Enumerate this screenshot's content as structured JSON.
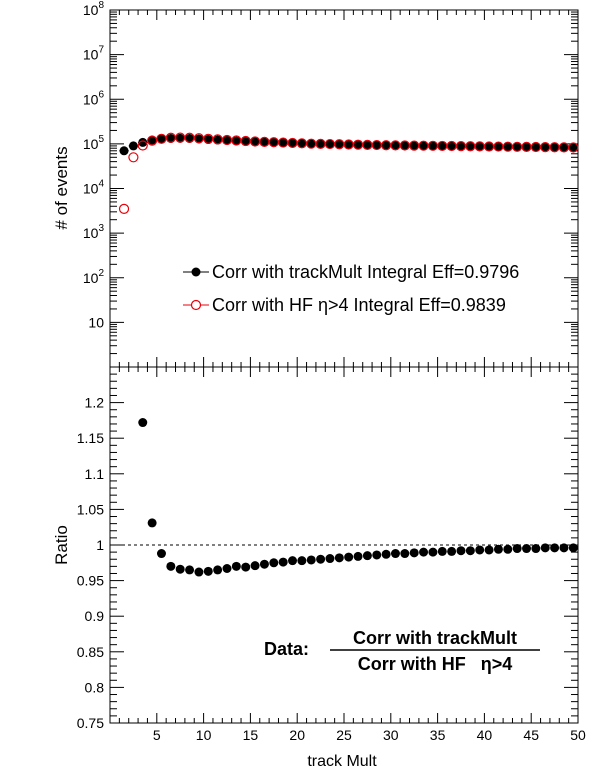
{
  "chart_data": [
    {
      "type": "scatter",
      "title": "",
      "xlabel": "",
      "ylabel": "# of events",
      "yscale": "log",
      "xlim": [
        0,
        50
      ],
      "ylim": [
        1,
        100000000
      ],
      "ytick_values": [
        10,
        100,
        1000,
        10000,
        100000,
        1000000,
        10000000,
        100000000
      ],
      "ytick_exponents": [
        "",
        "2",
        "3",
        "4",
        "5",
        "6",
        "7",
        "8"
      ],
      "ytick_base": "10",
      "grid": false,
      "legend_position": "center-right",
      "x": [
        1.5,
        2.5,
        3.5,
        4.5,
        5.5,
        6.5,
        7.5,
        8.5,
        9.5,
        10.5,
        11.5,
        12.5,
        13.5,
        14.5,
        15.5,
        16.5,
        17.5,
        18.5,
        19.5,
        20.5,
        21.5,
        22.5,
        23.5,
        24.5,
        25.5,
        26.5,
        27.5,
        28.5,
        29.5,
        30.5,
        31.5,
        32.5,
        33.5,
        34.5,
        35.5,
        36.5,
        37.5,
        38.5,
        39.5,
        40.5,
        41.5,
        42.5,
        43.5,
        44.5,
        45.5,
        46.5,
        47.5,
        48.5,
        49.5
      ],
      "series": [
        {
          "name": "Corr with trackMult Integral Eff=0.9796",
          "marker": "filled-circle",
          "color": "#000000",
          "values": [
            70000,
            90000,
            108000,
            122000,
            128000,
            132000,
            133000,
            132000,
            129000,
            125000,
            122000,
            119000,
            116000,
            113000,
            111000,
            109000,
            107000,
            105000,
            103000,
            101000,
            100000,
            99000,
            98000,
            97000,
            96000,
            95000,
            94000,
            93000,
            92000,
            91500,
            91000,
            90500,
            90000,
            89500,
            89000,
            88500,
            88000,
            87500,
            87000,
            86500,
            86000,
            85500,
            85000,
            84500,
            84000,
            83500,
            83000,
            82500,
            82000
          ]
        },
        {
          "name": "Corr with HF η>4 Integral Eff=0.9839",
          "marker": "open-circle",
          "color": "#e8000b",
          "values": [
            3500,
            50000,
            92000,
            118000,
            130000,
            137000,
            138000,
            137000,
            134000,
            130000,
            126000,
            122000,
            119000,
            116000,
            113000,
            111000,
            109000,
            107000,
            105000,
            103000,
            101000,
            100000,
            99000,
            98000,
            97000,
            96000,
            95000,
            94000,
            93000,
            92500,
            92000,
            91500,
            91000,
            90500,
            90000,
            89500,
            89000,
            88500,
            88000,
            87500,
            87000,
            86500,
            86000,
            85500,
            85000,
            84500,
            84000,
            83500,
            83000
          ]
        }
      ]
    },
    {
      "type": "scatter",
      "title": "",
      "xlabel": "track Mult",
      "ylabel": "Ratio",
      "xlim": [
        0,
        50
      ],
      "ylim": [
        0.75,
        1.25
      ],
      "xtick_labels": [
        "5",
        "10",
        "15",
        "20",
        "25",
        "30",
        "35",
        "40",
        "45",
        "50"
      ],
      "xtick_values": [
        5,
        10,
        15,
        20,
        25,
        30,
        35,
        40,
        45,
        50
      ],
      "ytick_labels": [
        "0.75",
        "0.8",
        "0.85",
        "0.9",
        "0.95",
        "1",
        "1.05",
        "1.1",
        "1.15",
        "1.2"
      ],
      "ytick_values": [
        0.75,
        0.8,
        0.85,
        0.9,
        0.95,
        1.0,
        1.05,
        1.1,
        1.15,
        1.2
      ],
      "reference_line": 1.0,
      "grid": false,
      "x": [
        3.5,
        4.5,
        5.5,
        6.5,
        7.5,
        8.5,
        9.5,
        10.5,
        11.5,
        12.5,
        13.5,
        14.5,
        15.5,
        16.5,
        17.5,
        18.5,
        19.5,
        20.5,
        21.5,
        22.5,
        23.5,
        24.5,
        25.5,
        26.5,
        27.5,
        28.5,
        29.5,
        30.5,
        31.5,
        32.5,
        33.5,
        34.5,
        35.5,
        36.5,
        37.5,
        38.5,
        39.5,
        40.5,
        41.5,
        42.5,
        43.5,
        44.5,
        45.5,
        46.5,
        47.5,
        48.5,
        49.5
      ],
      "values": [
        1.172,
        1.031,
        0.988,
        0.97,
        0.966,
        0.965,
        0.962,
        0.963,
        0.965,
        0.967,
        0.97,
        0.969,
        0.971,
        0.973,
        0.975,
        0.976,
        0.978,
        0.978,
        0.979,
        0.98,
        0.981,
        0.982,
        0.983,
        0.984,
        0.985,
        0.986,
        0.987,
        0.988,
        0.988,
        0.989,
        0.99,
        0.99,
        0.991,
        0.991,
        0.992,
        0.992,
        0.993,
        0.993,
        0.994,
        0.994,
        0.995,
        0.995,
        0.995,
        0.996,
        0.996,
        0.996,
        0.996
      ],
      "series_color": "#000000",
      "annotation": {
        "prefix": "Data:",
        "numerator": "Corr with trackMult",
        "denominator": "Corr with HF   η>4"
      }
    }
  ]
}
